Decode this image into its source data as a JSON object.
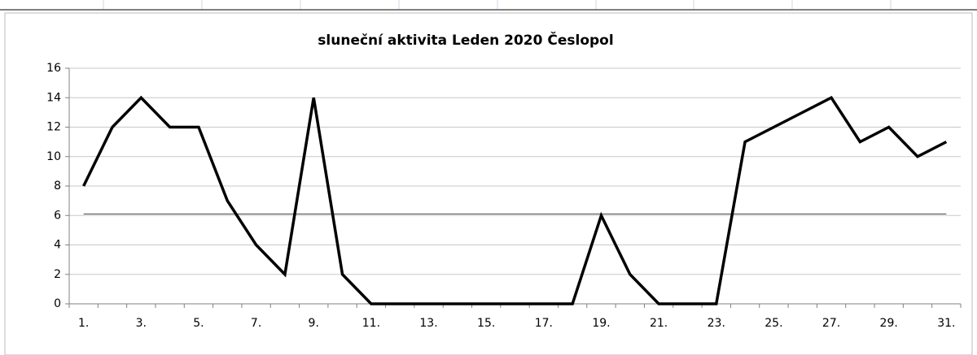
{
  "chart_data": {
    "type": "line",
    "title": "sluneční aktivita  Leden 2020 Česlopol",
    "categories": [
      "1.",
      null,
      "3.",
      null,
      "5.",
      null,
      "7.",
      null,
      "9.",
      null,
      "11.",
      null,
      "13.",
      null,
      "15.",
      null,
      "17.",
      null,
      "19.",
      null,
      "21.",
      null,
      "23.",
      null,
      "25.",
      null,
      "27.",
      null,
      "29.",
      null,
      "31."
    ],
    "values": [
      8,
      12,
      14,
      12,
      12,
      7,
      4,
      2,
      14,
      2,
      0,
      0,
      0,
      0,
      0,
      0,
      0,
      0,
      6,
      2,
      0,
      0,
      0,
      11,
      12,
      13,
      14,
      11,
      12,
      10,
      11
    ],
    "color": "#000000",
    "reference_line": 6.1,
    "ylim": [
      0,
      16
    ],
    "yticks": [
      0,
      2,
      4,
      6,
      8,
      10,
      12,
      14,
      16
    ],
    "grid": true
  }
}
